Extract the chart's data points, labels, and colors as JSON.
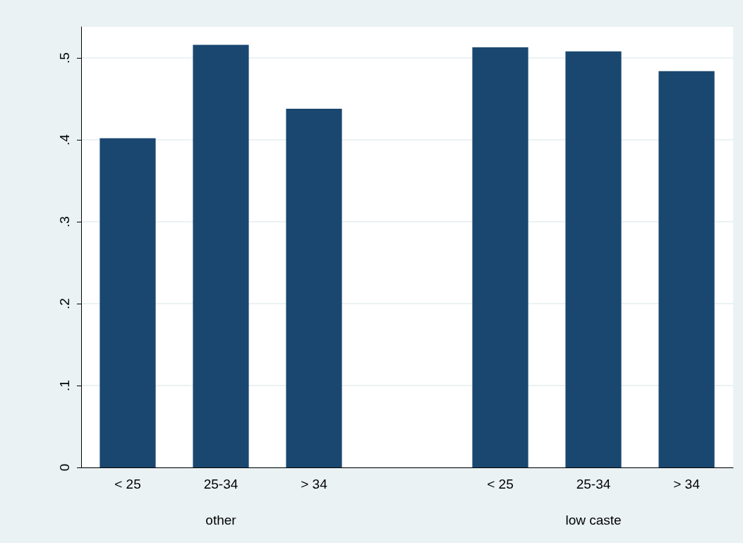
{
  "chart_data": {
    "type": "bar",
    "categories": [
      "< 25",
      "25-34",
      "> 34",
      null,
      "< 25",
      "25-34",
      "> 34"
    ],
    "values": [
      0.402,
      0.516,
      0.438,
      null,
      0.513,
      0.508,
      0.484
    ],
    "color": "#1a476f",
    "ylim": [
      0,
      0.538
    ],
    "yticks": [
      {
        "value": 0,
        "label": "0"
      },
      {
        "value": 0.1,
        "label": ".1"
      },
      {
        "value": 0.2,
        "label": ".2"
      },
      {
        "value": 0.3,
        "label": ".3"
      },
      {
        "value": 0.4,
        "label": ".4"
      },
      {
        "value": 0.5,
        "label": ".5"
      }
    ],
    "annotations": [
      "other",
      "low caste"
    ],
    "grid": "y"
  }
}
